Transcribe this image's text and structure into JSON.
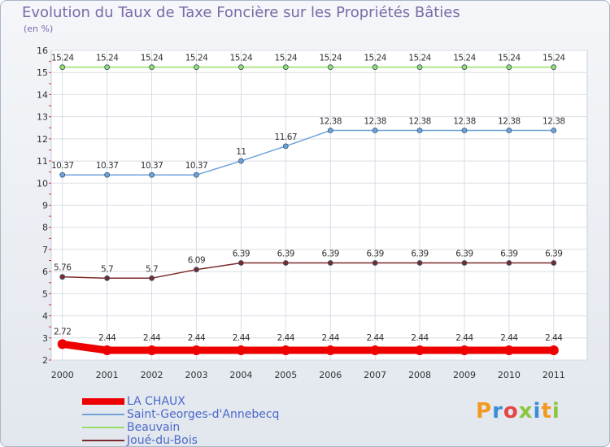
{
  "title": "Evolution du Taux de Taxe Foncière sur les Propriétés Bâties",
  "unit_label": "(en %)",
  "logo": "Proxiti",
  "chart_data": {
    "type": "line",
    "x": [
      "2000",
      "2001",
      "2002",
      "2003",
      "2004",
      "2005",
      "2006",
      "2007",
      "2008",
      "2009",
      "2010",
      "2011"
    ],
    "ylim": [
      2,
      16
    ],
    "yticks": [
      2,
      3,
      4,
      5,
      6,
      7,
      8,
      9,
      10,
      11,
      12,
      13,
      14,
      15,
      16
    ],
    "grid": true,
    "legend_position": "bottom-left",
    "series": [
      {
        "name": "LA CHAUX",
        "color": "#ee0000",
        "values": [
          2.72,
          2.44,
          2.44,
          2.44,
          2.44,
          2.44,
          2.44,
          2.44,
          2.44,
          2.44,
          2.44,
          2.44
        ],
        "labels": [
          "2.72",
          "2.44",
          "2.44",
          "2.44",
          "2.44",
          "2.44",
          "2.44",
          "2.44",
          "2.44",
          "2.44",
          "2.44",
          "2.44"
        ]
      },
      {
        "name": "Saint-Georges-d'Annebecq",
        "color": "#6fa3d8",
        "values": [
          10.37,
          10.37,
          10.37,
          10.37,
          11,
          11.67,
          12.38,
          12.38,
          12.38,
          12.38,
          12.38,
          12.38
        ],
        "labels": [
          "10.37",
          "10.37",
          "10.37",
          "10.37",
          "11",
          "11.67",
          "12.38",
          "12.38",
          "12.38",
          "12.38",
          "12.38",
          "12.38"
        ]
      },
      {
        "name": "Beauvain",
        "color": "#99dd66",
        "values": [
          15.24,
          15.24,
          15.24,
          15.24,
          15.24,
          15.24,
          15.24,
          15.24,
          15.24,
          15.24,
          15.24,
          15.24
        ],
        "labels": [
          "15.24",
          "15.24",
          "15.24",
          "15.24",
          "15.24",
          "15.24",
          "15.24",
          "15.24",
          "15.24",
          "15.24",
          "15.24",
          "15.24"
        ]
      },
      {
        "name": "Joué-du-Bois",
        "color": "#7a2a2a",
        "values": [
          5.76,
          5.7,
          5.7,
          6.09,
          6.39,
          6.39,
          6.39,
          6.39,
          6.39,
          6.39,
          6.39,
          6.39
        ],
        "labels": [
          "5.76",
          "5.7",
          "5.7",
          "6.09",
          "6.39",
          "6.39",
          "6.39",
          "6.39",
          "6.39",
          "6.39",
          "6.39",
          "6.39"
        ]
      }
    ]
  }
}
